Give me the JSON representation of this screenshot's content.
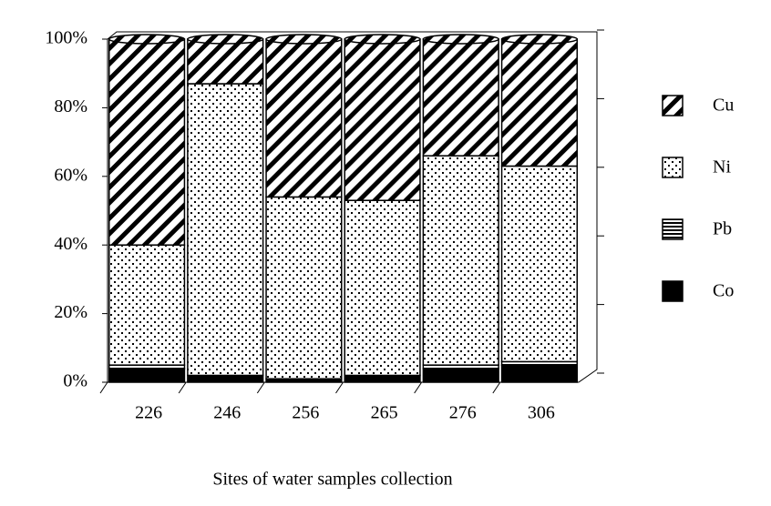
{
  "chart_data": {
    "type": "stacked_bar",
    "x_label": "Sites of water samples collection",
    "categories": [
      "226",
      "246",
      "256",
      "265",
      "276",
      "306"
    ],
    "series": [
      {
        "name": "Co",
        "color": "#000000",
        "pattern": "solid",
        "values": [
          4,
          2,
          1,
          2,
          4,
          5
        ]
      },
      {
        "name": "Pb",
        "color": "#000000",
        "pattern": "horizontal",
        "values": [
          1,
          0,
          0,
          0,
          1,
          1
        ]
      },
      {
        "name": "Ni",
        "color": "#000000",
        "pattern": "dots",
        "values": [
          35,
          85,
          53,
          51,
          61,
          57
        ]
      },
      {
        "name": "Cu",
        "color": "#000000",
        "pattern": "diagonal",
        "values": [
          60,
          13,
          46,
          47,
          34,
          37
        ]
      }
    ],
    "ylim": [
      0,
      100
    ],
    "yticks": [
      {
        "value": 0,
        "label": "0%"
      },
      {
        "value": 20,
        "label": "20%"
      },
      {
        "value": 40,
        "label": "40%"
      },
      {
        "value": 60,
        "label": "60%"
      },
      {
        "value": 80,
        "label": "80%"
      },
      {
        "value": 100,
        "label": "100%"
      }
    ],
    "legend": "right"
  }
}
